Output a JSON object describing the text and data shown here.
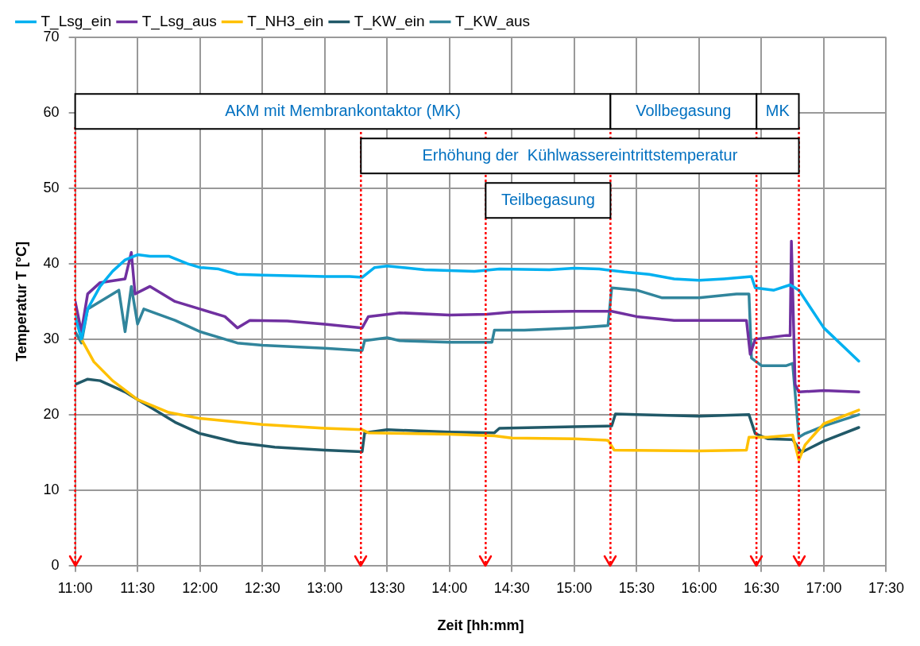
{
  "chart_data": {
    "type": "line",
    "xlabel": "Zeit [hh:mm]",
    "ylabel": "Temperatur T [°C]",
    "xlim": [
      11,
      17.5
    ],
    "xticks": [
      {
        "value": 11,
        "label": "11:00"
      },
      {
        "value": 11.5,
        "label": "11:30"
      },
      {
        "value": 12,
        "label": "12:00"
      },
      {
        "value": 12.5,
        "label": "12:30"
      },
      {
        "value": 13,
        "label": "13:00"
      },
      {
        "value": 13.5,
        "label": "13:30"
      },
      {
        "value": 14,
        "label": "14:00"
      },
      {
        "value": 14.5,
        "label": "14:30"
      },
      {
        "value": 15,
        "label": "15:00"
      },
      {
        "value": 15.5,
        "label": "15:30"
      },
      {
        "value": 16,
        "label": "16:00"
      },
      {
        "value": 16.5,
        "label": "16:30"
      },
      {
        "value": 17,
        "label": "17:00"
      },
      {
        "value": 17.5,
        "label": "17:30"
      }
    ],
    "ylim": [
      0,
      70
    ],
    "yticks": [
      0,
      10,
      20,
      30,
      40,
      50,
      60,
      70
    ],
    "grid": true,
    "legend": "top",
    "marker": "none",
    "line_style": "solid",
    "series": [
      {
        "name": "T_Lsg_ein",
        "color": "#00b0f0",
        "x": [
          11.0,
          11.05,
          11.1,
          11.2,
          11.3,
          11.4,
          11.5,
          11.6,
          11.75,
          11.9,
          12.0,
          12.15,
          12.3,
          12.5,
          13.0,
          13.2,
          13.3,
          13.4,
          13.5,
          13.8,
          14.2,
          14.4,
          14.8,
          15.0,
          15.2,
          15.4,
          15.6,
          15.8,
          16.0,
          16.2,
          16.42,
          16.45,
          16.6,
          16.73,
          16.8,
          17.0,
          17.28
        ],
        "values": [
          33,
          30,
          34,
          37,
          39,
          40.5,
          41.2,
          41,
          41,
          40,
          39.5,
          39.3,
          38.6,
          38.5,
          38.3,
          38.3,
          38.2,
          39.5,
          39.7,
          39.2,
          39.0,
          39.3,
          39.2,
          39.4,
          39.3,
          38.9,
          38.6,
          38.0,
          37.8,
          38.0,
          38.3,
          36.8,
          36.5,
          37.2,
          36.5,
          31.5,
          27.1
        ]
      },
      {
        "name": "T_Lsg_aus",
        "color": "#7030a0",
        "x": [
          11.0,
          11.05,
          11.1,
          11.2,
          11.4,
          11.45,
          11.48,
          11.6,
          11.8,
          12.0,
          12.2,
          12.3,
          12.4,
          12.7,
          13.0,
          13.3,
          13.35,
          13.6,
          14.0,
          14.3,
          14.5,
          15.0,
          15.3,
          15.5,
          15.8,
          16.2,
          16.38,
          16.41,
          16.45,
          16.7,
          16.73,
          16.74,
          16.77,
          16.8,
          17.0,
          17.28
        ],
        "values": [
          35,
          31,
          36,
          37.5,
          38,
          41.5,
          36,
          37,
          35,
          34,
          33,
          31.5,
          32.5,
          32.4,
          32,
          31.5,
          33,
          33.5,
          33.2,
          33.3,
          33.6,
          33.7,
          33.7,
          33,
          32.5,
          32.5,
          32.5,
          28,
          30,
          30.5,
          30.5,
          43,
          24,
          23,
          23.2,
          23
        ]
      },
      {
        "name": "T_NH3_ein",
        "color": "#ffc000",
        "x": [
          11.0,
          11.05,
          11.15,
          11.3,
          11.5,
          11.75,
          12.0,
          12.5,
          13.0,
          13.3,
          13.35,
          14.0,
          14.36,
          14.5,
          15.0,
          15.27,
          15.32,
          16.0,
          16.38,
          16.4,
          16.55,
          16.75,
          16.8,
          16.85,
          17.0,
          17.28
        ],
        "values": [
          34,
          30,
          27,
          24.5,
          22,
          20.3,
          19.5,
          18.7,
          18.2,
          18,
          17.6,
          17.4,
          17.2,
          16.9,
          16.8,
          16.6,
          15.3,
          15.2,
          15.3,
          17,
          17,
          17.3,
          14,
          16,
          18.8,
          20.6
        ]
      },
      {
        "name": "T_KW_ein",
        "color": "#215968",
        "x": [
          11.0,
          11.1,
          11.2,
          11.4,
          11.6,
          11.8,
          12.0,
          12.3,
          12.6,
          13.0,
          13.3,
          13.32,
          13.5,
          14.0,
          14.36,
          14.4,
          15.0,
          15.3,
          15.33,
          15.5,
          16.0,
          16.4,
          16.45,
          16.55,
          16.75,
          16.82,
          17.0,
          17.28
        ],
        "values": [
          24,
          24.7,
          24.5,
          23,
          21,
          19,
          17.5,
          16.3,
          15.7,
          15.3,
          15.1,
          17.6,
          18,
          17.7,
          17.6,
          18.2,
          18.4,
          18.5,
          20.1,
          20,
          19.8,
          20,
          17.5,
          16.8,
          16.7,
          15,
          16.5,
          18.3
        ]
      },
      {
        "name": "T_KW_aus",
        "color": "#31859c",
        "x": [
          11.0,
          11.05,
          11.1,
          11.2,
          11.35,
          11.4,
          11.45,
          11.5,
          11.55,
          11.8,
          12.0,
          12.3,
          12.5,
          13.0,
          13.3,
          13.32,
          13.5,
          13.6,
          14.0,
          14.34,
          14.36,
          14.6,
          15.0,
          15.27,
          15.3,
          15.5,
          15.7,
          16.0,
          16.3,
          16.4,
          16.42,
          16.5,
          16.7,
          16.75,
          16.8,
          16.85,
          17.0,
          17.28
        ],
        "values": [
          31,
          29.5,
          34,
          35,
          36.5,
          31,
          37,
          32,
          34,
          32.5,
          31,
          29.5,
          29.2,
          28.8,
          28.5,
          29.8,
          30.2,
          29.8,
          29.6,
          29.6,
          31.2,
          31.2,
          31.5,
          31.8,
          36.8,
          36.5,
          35.5,
          35.5,
          36,
          36,
          27.5,
          26.5,
          26.5,
          26.8,
          17,
          17.5,
          18.5,
          20
        ]
      }
    ],
    "ref_lines": [
      {
        "axis": "x",
        "value": 11.0,
        "color": "#ff0000",
        "line_style": "dotted"
      },
      {
        "axis": "x",
        "value": 13.29,
        "color": "#ff0000",
        "line_style": "dotted"
      },
      {
        "axis": "x",
        "value": 14.29,
        "color": "#ff0000",
        "line_style": "dotted"
      },
      {
        "axis": "x",
        "value": 15.29,
        "color": "#ff0000",
        "line_style": "dotted"
      },
      {
        "axis": "x",
        "value": 16.46,
        "color": "#ff0000",
        "line_style": "dotted"
      },
      {
        "axis": "x",
        "value": 16.8,
        "color": "#ff0000",
        "line_style": "dotted"
      }
    ],
    "bands": [
      {
        "axis": "x",
        "from": 11.0,
        "to": 15.29,
        "label": "AKM mit Membrankontaktor (MK)",
        "color": "#ffffff"
      },
      {
        "axis": "x",
        "from": 16.46,
        "to": 16.8,
        "label": "MK",
        "color": "#ffffff"
      },
      {
        "axis": "x",
        "from": 13.29,
        "to": 16.8,
        "label": "Erhöhung der  Kühlwassereintrittstemperatur",
        "color": "#ffffff"
      },
      {
        "axis": "x",
        "from": 14.29,
        "to": 15.29,
        "label": "Teilbegasung",
        "color": "#ffffff"
      },
      {
        "axis": "x",
        "from": 15.29,
        "to": 16.46,
        "label": "Vollbegasung",
        "color": "#ffffff"
      }
    ]
  }
}
